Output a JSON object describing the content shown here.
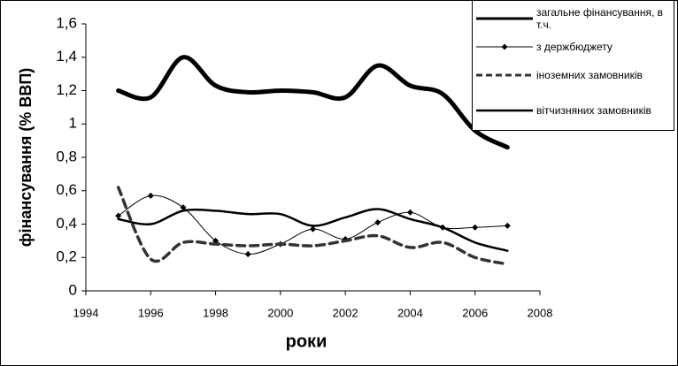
{
  "chart_data": {
    "type": "line",
    "x_label": "роки",
    "y_label": "фінансування (% ВВП)",
    "x": [
      1995,
      1996,
      1997,
      1998,
      1999,
      2000,
      2001,
      2002,
      2003,
      2004,
      2005,
      2006,
      2007
    ],
    "xlim": [
      1994,
      2008
    ],
    "xticks": [
      1994,
      1996,
      1998,
      2000,
      2002,
      2004,
      2006,
      2008
    ],
    "ylim": [
      0,
      1.6
    ],
    "yticks": [
      0,
      {
        "value": 0.2,
        "label": "0,2"
      },
      {
        "value": 0.4,
        "label": "0,4"
      },
      {
        "value": 0.6,
        "label": "0,6"
      },
      {
        "value": 0.8,
        "label": "0,8"
      },
      1,
      {
        "value": 1.2,
        "label": "1,2"
      },
      {
        "value": 1.4,
        "label": "1,4"
      },
      {
        "value": 1.6,
        "label": "1,6"
      }
    ],
    "grid": false,
    "legend": "top-right",
    "series": [
      {
        "name": "загальне фінансування, в т.ч.",
        "color": "#000000",
        "width": 5,
        "dash": false,
        "marker": "none",
        "values": [
          1.2,
          1.16,
          1.4,
          1.23,
          1.19,
          1.2,
          1.19,
          1.16,
          1.35,
          1.23,
          1.18,
          0.96,
          0.86
        ]
      },
      {
        "name": "з держбюджету",
        "color": "#000000",
        "width": 1,
        "dash": false,
        "marker": "diamond",
        "values": [
          0.45,
          0.57,
          0.5,
          0.3,
          0.22,
          0.28,
          0.37,
          0.31,
          0.41,
          0.47,
          0.38,
          0.38,
          0.39
        ]
      },
      {
        "name": "іноземних замовників",
        "color": "#333333",
        "width": 3.5,
        "dash": true,
        "marker": "none",
        "values": [
          0.62,
          0.19,
          0.29,
          0.28,
          0.27,
          0.28,
          0.27,
          0.3,
          0.33,
          0.26,
          0.29,
          0.2,
          0.16
        ]
      },
      {
        "name": "вітчизняних замовників",
        "color": "#000000",
        "width": 2.5,
        "dash": false,
        "marker": "none",
        "values": [
          0.43,
          0.4,
          0.48,
          0.48,
          0.46,
          0.46,
          0.39,
          0.44,
          0.49,
          0.43,
          0.38,
          0.29,
          0.24
        ]
      }
    ]
  }
}
